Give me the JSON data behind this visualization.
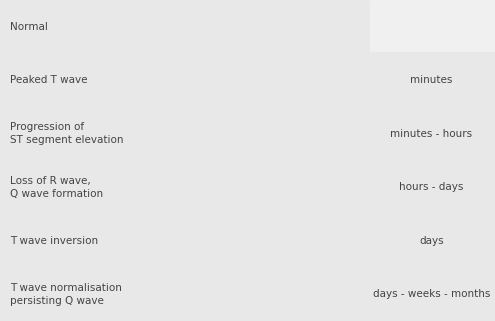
{
  "rows": [
    {
      "label": "Normal",
      "time_label": "",
      "show_time_box": false
    },
    {
      "label": "Peaked T wave",
      "time_label": "minutes",
      "show_time_box": true
    },
    {
      "label": "Progression of\nST segment elevation",
      "time_label": "minutes - hours",
      "show_time_box": true
    },
    {
      "label": "Loss of R wave,\nQ wave formation",
      "time_label": "hours - days",
      "show_time_box": true
    },
    {
      "label": "T wave inversion",
      "time_label": "days",
      "show_time_box": true
    },
    {
      "label": "T wave normalisation\npersisting Q wave",
      "time_label": "days - weeks - months",
      "show_time_box": true
    }
  ],
  "bg_color": "#f0f0f0",
  "box_color": "#e8e8e8",
  "text_color": "#444444",
  "wave_color": "#1a1a1a",
  "baseline_color": "#c0c0c0",
  "font_size_label": 7.5,
  "font_size_time": 7.5
}
